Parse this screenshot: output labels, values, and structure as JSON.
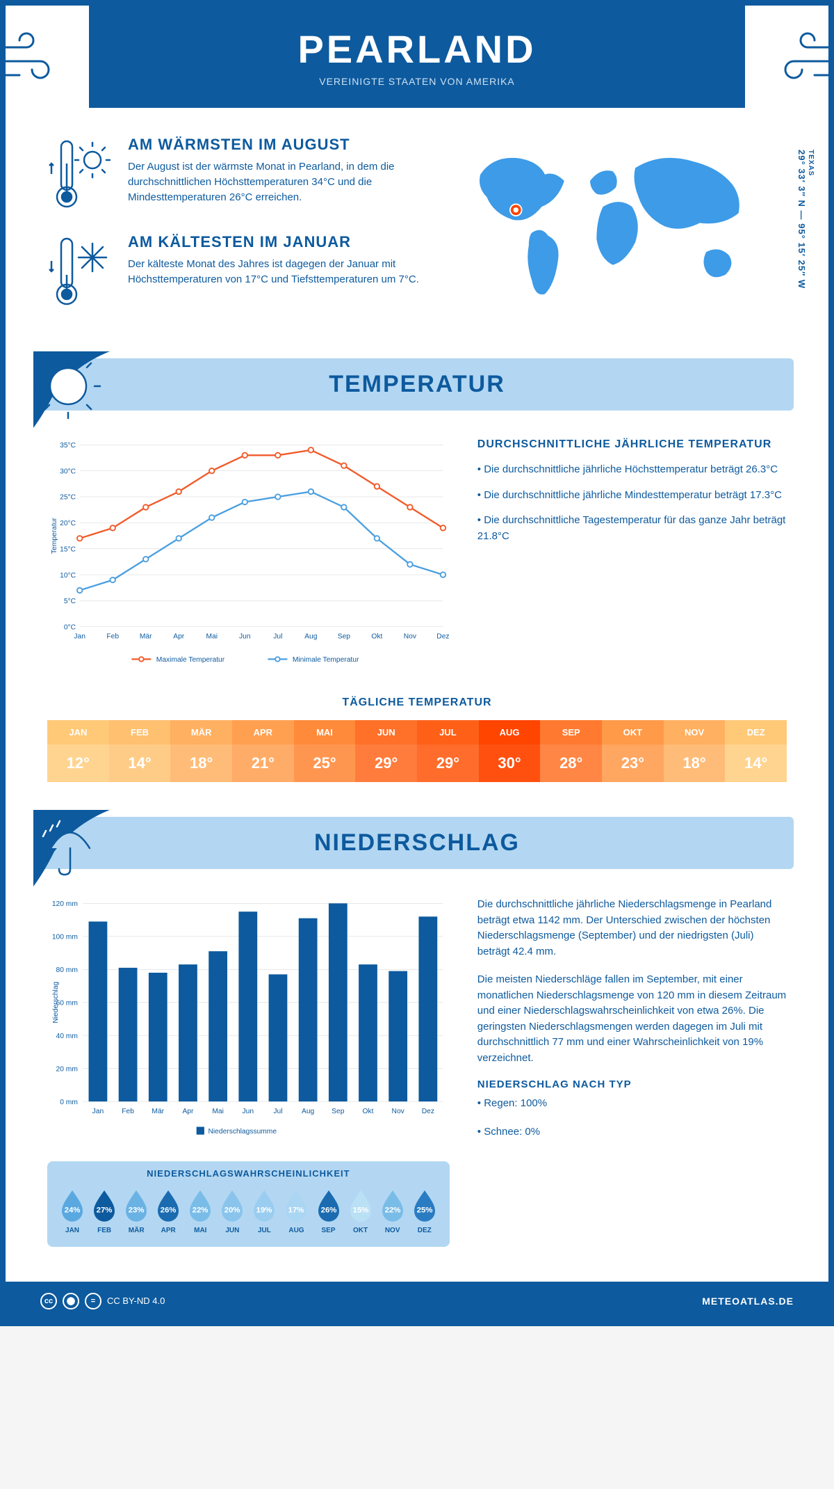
{
  "header": {
    "city": "PEARLAND",
    "country": "VEREINIGTE STAATEN VON AMERIKA"
  },
  "coords": {
    "state": "TEXAS",
    "lat": "29° 33′ 3″ N",
    "lon": "95° 15′ 25″ W"
  },
  "warmest": {
    "title": "AM WÄRMSTEN IM AUGUST",
    "text": "Der August ist der wärmste Monat in Pearland, in dem die durchschnittlichen Höchsttemperaturen 34°C und die Mindesttemperaturen 26°C erreichen."
  },
  "coldest": {
    "title": "AM KÄLTESTEN IM JANUAR",
    "text": "Der kälteste Monat des Jahres ist dagegen der Januar mit Höchsttemperaturen von 17°C und Tiefsttemperaturen um 7°C."
  },
  "temp_section": {
    "title": "TEMPERATUR",
    "side_title": "DURCHSCHNITTLICHE JÄHRLICHE TEMPERATUR",
    "bullets": [
      "• Die durchschnittliche jährliche Höchsttemperatur beträgt 26.3°C",
      "• Die durchschnittliche jährliche Mindesttemperatur beträgt 17.3°C",
      "• Die durchschnittliche Tagestemperatur für das ganze Jahr beträgt 21.8°C"
    ],
    "chart": {
      "months": [
        "Jan",
        "Feb",
        "Mär",
        "Apr",
        "Mai",
        "Jun",
        "Jul",
        "Aug",
        "Sep",
        "Okt",
        "Nov",
        "Dez"
      ],
      "max": [
        17,
        19,
        23,
        26,
        30,
        33,
        33,
        34,
        31,
        27,
        23,
        19
      ],
      "min": [
        7,
        9,
        13,
        17,
        21,
        24,
        25,
        26,
        23,
        17,
        12,
        10
      ],
      "ylabel": "Temperatur",
      "ylim": [
        0,
        35
      ],
      "ytick_step": 5,
      "max_color": "#f15a29",
      "min_color": "#4a9fe0",
      "grid_color": "#d0d0d0",
      "legend_max": "Maximale Temperatur",
      "legend_min": "Minimale Temperatur"
    }
  },
  "daily": {
    "title": "TÄGLICHE TEMPERATUR",
    "months": [
      "JAN",
      "FEB",
      "MÄR",
      "APR",
      "MAI",
      "JUN",
      "JUL",
      "AUG",
      "SEP",
      "OKT",
      "NOV",
      "DEZ"
    ],
    "values": [
      "12°",
      "14°",
      "18°",
      "21°",
      "25°",
      "29°",
      "29°",
      "30°",
      "28°",
      "23°",
      "18°",
      "14°"
    ],
    "head_colors": [
      "#ffc978",
      "#ffc070",
      "#ffb060",
      "#ffa050",
      "#ff8a3a",
      "#ff7028",
      "#ff6018",
      "#ff4500",
      "#ff7a30",
      "#ff9a48",
      "#ffb060",
      "#ffc978"
    ],
    "val_colors": [
      "#ffd490",
      "#ffcc88",
      "#ffbc78",
      "#ffac68",
      "#ff9650",
      "#ff7c3c",
      "#ff6c2c",
      "#ff5010",
      "#ff8644",
      "#ffa660",
      "#ffbc78",
      "#ffd490"
    ]
  },
  "precip_section": {
    "title": "NIEDERSCHLAG",
    "chart": {
      "months": [
        "Jan",
        "Feb",
        "Mär",
        "Apr",
        "Mai",
        "Jun",
        "Jul",
        "Aug",
        "Sep",
        "Okt",
        "Nov",
        "Dez"
      ],
      "values": [
        109,
        81,
        78,
        83,
        91,
        115,
        77,
        111,
        120,
        83,
        79,
        112
      ],
      "ylabel": "Niederschlag",
      "ylim": [
        0,
        120
      ],
      "ytick_step": 20,
      "bar_color": "#0d5a9e",
      "grid_color": "#d0d0d0",
      "legend": "Niederschlagssumme"
    },
    "side_p1": "Die durchschnittliche jährliche Niederschlagsmenge in Pearland beträgt etwa 1142 mm. Der Unterschied zwischen der höchsten Niederschlagsmenge (September) und der niedrigsten (Juli) beträgt 42.4 mm.",
    "side_p2": "Die meisten Niederschläge fallen im September, mit einer monatlichen Niederschlagsmenge von 120 mm in diesem Zeitraum und einer Niederschlagswahrscheinlichkeit von etwa 26%. Die geringsten Niederschlagsmengen werden dagegen im Juli mit durchschnittlich 77 mm und einer Wahrscheinlichkeit von 19% verzeichnet.",
    "type_title": "NIEDERSCHLAG NACH TYP",
    "type_bullets": [
      "• Regen: 100%",
      "• Schnee: 0%"
    ],
    "prob": {
      "title": "NIEDERSCHLAGSWAHRSCHEINLICHKEIT",
      "months": [
        "JAN",
        "FEB",
        "MÄR",
        "APR",
        "MAI",
        "JUN",
        "JUL",
        "AUG",
        "SEP",
        "OKT",
        "NOV",
        "DEZ"
      ],
      "values": [
        "24%",
        "27%",
        "23%",
        "26%",
        "22%",
        "20%",
        "19%",
        "17%",
        "26%",
        "15%",
        "22%",
        "25%"
      ],
      "colors": [
        "#5aa8e0",
        "#0d5a9e",
        "#6ab2e4",
        "#1a6bb0",
        "#7abce8",
        "#8ac4ec",
        "#9acdf0",
        "#aad6f3",
        "#1a6bb0",
        "#bae0f6",
        "#7abce8",
        "#2a7cc2"
      ]
    }
  },
  "footer": {
    "license": "CC BY-ND 4.0",
    "brand": "METEOATLAS.DE"
  }
}
